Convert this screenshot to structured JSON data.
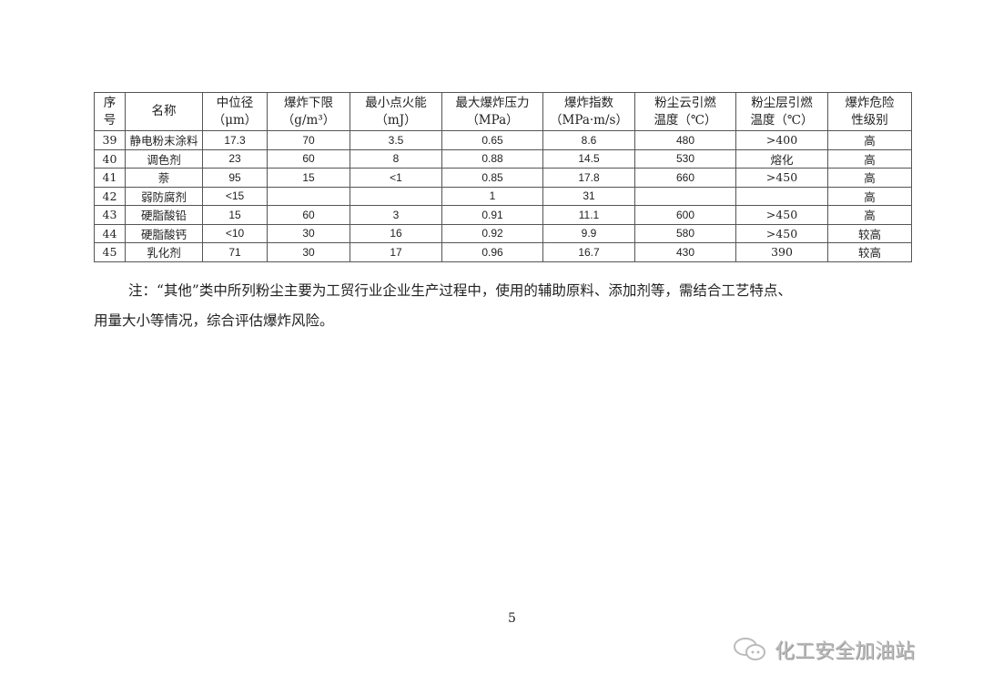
{
  "table": {
    "headers": [
      "序\n号",
      "名称",
      "中位径\n（μm）",
      "爆炸下限\n（g/m³）",
      "最小点火能\n（mJ）",
      "最大爆炸压力\n（MPa）",
      "爆炸指数\n（MPa·m/s）",
      "粉尘云引燃\n温度（℃）",
      "粉尘层引燃\n温度（℃）",
      "爆炸危险\n性级别"
    ],
    "rows": [
      [
        "39",
        "静电粉末涂料",
        "17.3",
        "70",
        "3.5",
        "0.65",
        "8.6",
        "480",
        ">400",
        "高"
      ],
      [
        "40",
        "调色剂",
        "23",
        "60",
        "8",
        "0.88",
        "14.5",
        "530",
        "熔化",
        "高"
      ],
      [
        "41",
        "萘",
        "95",
        "15",
        "<1",
        "0.85",
        "17.8",
        "660",
        ">450",
        "高"
      ],
      [
        "42",
        "弱防腐剂",
        "<15",
        "",
        "",
        "1",
        "31",
        "",
        "",
        "高"
      ],
      [
        "43",
        "硬脂酸铅",
        "15",
        "60",
        "3",
        "0.91",
        "11.1",
        "600",
        ">450",
        "高"
      ],
      [
        "44",
        "硬脂酸钙",
        "<10",
        "30",
        "16",
        "0.92",
        "9.9",
        "580",
        ">450",
        "较高"
      ],
      [
        "45",
        "乳化剂",
        "71",
        "30",
        "17",
        "0.96",
        "16.7",
        "430",
        "390",
        "较高"
      ]
    ]
  },
  "note": {
    "line1": "注：“其他”类中所列粉尘主要为工贸行业企业生产过程中，使用的辅助原料、添加剂等，需结合工艺特点、",
    "line2": "用量大小等情况，综合评估爆炸风险。"
  },
  "page_number": "5",
  "watermark": {
    "text": "化工安全加油站",
    "icon": "wechat-icon"
  }
}
